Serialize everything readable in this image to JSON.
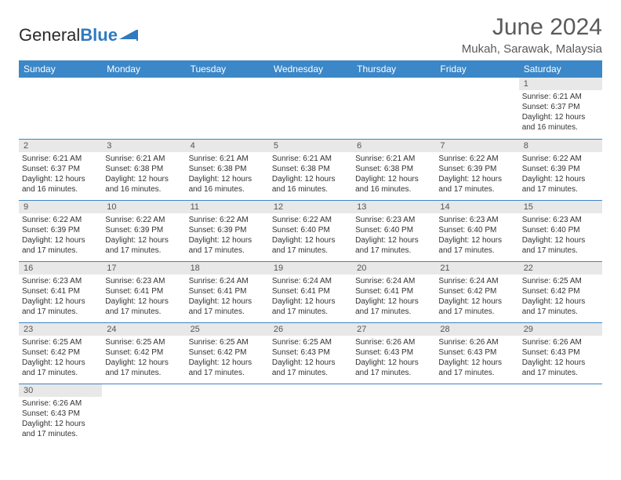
{
  "logo": {
    "part1": "General",
    "part2": "Blue"
  },
  "title": "June 2024",
  "subtitle": "Mukah, Sarawak, Malaysia",
  "colors": {
    "header_bg": "#3b87c8",
    "header_fg": "#ffffff",
    "daynum_bg": "#e8e8e8",
    "rule": "#3b87c8",
    "text": "#333333",
    "title": "#5a5a5a"
  },
  "weekdays": [
    "Sunday",
    "Monday",
    "Tuesday",
    "Wednesday",
    "Thursday",
    "Friday",
    "Saturday"
  ],
  "weeks": [
    [
      null,
      null,
      null,
      null,
      null,
      null,
      {
        "n": "1",
        "sr": "6:21 AM",
        "ss": "6:37 PM",
        "dl": "12 hours and 16 minutes."
      }
    ],
    [
      {
        "n": "2",
        "sr": "6:21 AM",
        "ss": "6:37 PM",
        "dl": "12 hours and 16 minutes."
      },
      {
        "n": "3",
        "sr": "6:21 AM",
        "ss": "6:38 PM",
        "dl": "12 hours and 16 minutes."
      },
      {
        "n": "4",
        "sr": "6:21 AM",
        "ss": "6:38 PM",
        "dl": "12 hours and 16 minutes."
      },
      {
        "n": "5",
        "sr": "6:21 AM",
        "ss": "6:38 PM",
        "dl": "12 hours and 16 minutes."
      },
      {
        "n": "6",
        "sr": "6:21 AM",
        "ss": "6:38 PM",
        "dl": "12 hours and 16 minutes."
      },
      {
        "n": "7",
        "sr": "6:22 AM",
        "ss": "6:39 PM",
        "dl": "12 hours and 17 minutes."
      },
      {
        "n": "8",
        "sr": "6:22 AM",
        "ss": "6:39 PM",
        "dl": "12 hours and 17 minutes."
      }
    ],
    [
      {
        "n": "9",
        "sr": "6:22 AM",
        "ss": "6:39 PM",
        "dl": "12 hours and 17 minutes."
      },
      {
        "n": "10",
        "sr": "6:22 AM",
        "ss": "6:39 PM",
        "dl": "12 hours and 17 minutes."
      },
      {
        "n": "11",
        "sr": "6:22 AM",
        "ss": "6:39 PM",
        "dl": "12 hours and 17 minutes."
      },
      {
        "n": "12",
        "sr": "6:22 AM",
        "ss": "6:40 PM",
        "dl": "12 hours and 17 minutes."
      },
      {
        "n": "13",
        "sr": "6:23 AM",
        "ss": "6:40 PM",
        "dl": "12 hours and 17 minutes."
      },
      {
        "n": "14",
        "sr": "6:23 AM",
        "ss": "6:40 PM",
        "dl": "12 hours and 17 minutes."
      },
      {
        "n": "15",
        "sr": "6:23 AM",
        "ss": "6:40 PM",
        "dl": "12 hours and 17 minutes."
      }
    ],
    [
      {
        "n": "16",
        "sr": "6:23 AM",
        "ss": "6:41 PM",
        "dl": "12 hours and 17 minutes."
      },
      {
        "n": "17",
        "sr": "6:23 AM",
        "ss": "6:41 PM",
        "dl": "12 hours and 17 minutes."
      },
      {
        "n": "18",
        "sr": "6:24 AM",
        "ss": "6:41 PM",
        "dl": "12 hours and 17 minutes."
      },
      {
        "n": "19",
        "sr": "6:24 AM",
        "ss": "6:41 PM",
        "dl": "12 hours and 17 minutes."
      },
      {
        "n": "20",
        "sr": "6:24 AM",
        "ss": "6:41 PM",
        "dl": "12 hours and 17 minutes."
      },
      {
        "n": "21",
        "sr": "6:24 AM",
        "ss": "6:42 PM",
        "dl": "12 hours and 17 minutes."
      },
      {
        "n": "22",
        "sr": "6:25 AM",
        "ss": "6:42 PM",
        "dl": "12 hours and 17 minutes."
      }
    ],
    [
      {
        "n": "23",
        "sr": "6:25 AM",
        "ss": "6:42 PM",
        "dl": "12 hours and 17 minutes."
      },
      {
        "n": "24",
        "sr": "6:25 AM",
        "ss": "6:42 PM",
        "dl": "12 hours and 17 minutes."
      },
      {
        "n": "25",
        "sr": "6:25 AM",
        "ss": "6:42 PM",
        "dl": "12 hours and 17 minutes."
      },
      {
        "n": "26",
        "sr": "6:25 AM",
        "ss": "6:43 PM",
        "dl": "12 hours and 17 minutes."
      },
      {
        "n": "27",
        "sr": "6:26 AM",
        "ss": "6:43 PM",
        "dl": "12 hours and 17 minutes."
      },
      {
        "n": "28",
        "sr": "6:26 AM",
        "ss": "6:43 PM",
        "dl": "12 hours and 17 minutes."
      },
      {
        "n": "29",
        "sr": "6:26 AM",
        "ss": "6:43 PM",
        "dl": "12 hours and 17 minutes."
      }
    ],
    [
      {
        "n": "30",
        "sr": "6:26 AM",
        "ss": "6:43 PM",
        "dl": "12 hours and 17 minutes."
      },
      null,
      null,
      null,
      null,
      null,
      null
    ]
  ],
  "labels": {
    "sunrise": "Sunrise:",
    "sunset": "Sunset:",
    "daylight": "Daylight:"
  }
}
